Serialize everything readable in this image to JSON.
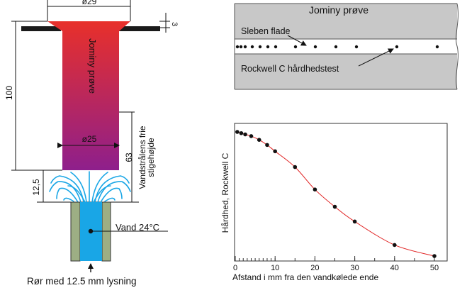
{
  "left_diagram": {
    "dim_top_diameter": "ø29",
    "dim_flange_thickness": "3",
    "dim_length": "100",
    "dim_inner_diameter": "ø25",
    "dim_height": "63",
    "dim_gap": "12,5",
    "specimen_label": "Jominy prøve",
    "rise_label_line1": "Vandstrålens frie",
    "rise_label_line2": "stigehøjde",
    "water_label": "Vand 24°C",
    "pipe_label": "Rør med 12.5 mm lysning",
    "colors": {
      "specimen_top": "#e8302a",
      "specimen_bottom": "#8e1f8c",
      "water": "#19a6e6",
      "pipe_wall": "#9dae84"
    }
  },
  "bar_diagram": {
    "title": "Jominy prøve",
    "ground_label": "Sleben flade",
    "test_label": "Rockwell C hårdhedstest",
    "colors": {
      "bar": "#c8c8c8"
    }
  },
  "chart_data": {
    "type": "scatter",
    "title": "",
    "xlabel": "Afstand i mm fra den vandkølede ende",
    "ylabel": "Hårdhed, Rockwell C",
    "xlim": [
      0,
      50
    ],
    "x_ticks": [
      0,
      10,
      20,
      30,
      40,
      50
    ],
    "x_minor_ticks": [
      1,
      2,
      3,
      4,
      5,
      6,
      7,
      8,
      9,
      10,
      11,
      12,
      13,
      14,
      15,
      16,
      17,
      18,
      19,
      20,
      21,
      22,
      23,
      24,
      25,
      26,
      27,
      28,
      29,
      30,
      31,
      32,
      33,
      34,
      35,
      36,
      37,
      38,
      39,
      40,
      41,
      42,
      43,
      44,
      45,
      46,
      47,
      48,
      49
    ],
    "y_relative_scale": "0 = laveste viste hårdhed, 1 = højeste viste hårdhed",
    "points": [
      {
        "x": 0.5,
        "y": 1.0
      },
      {
        "x": 1.5,
        "y": 0.99
      },
      {
        "x": 2.5,
        "y": 0.98
      },
      {
        "x": 4,
        "y": 0.966
      },
      {
        "x": 6,
        "y": 0.936
      },
      {
        "x": 8,
        "y": 0.895
      },
      {
        "x": 10,
        "y": 0.844
      },
      {
        "x": 15,
        "y": 0.717
      },
      {
        "x": 20,
        "y": 0.536
      },
      {
        "x": 25,
        "y": 0.397
      },
      {
        "x": 30,
        "y": 0.278
      },
      {
        "x": 40,
        "y": 0.089
      },
      {
        "x": 50,
        "y": 0.0
      }
    ],
    "grid": false,
    "colors": {
      "points": "#111111",
      "curve": "#e02020"
    }
  }
}
